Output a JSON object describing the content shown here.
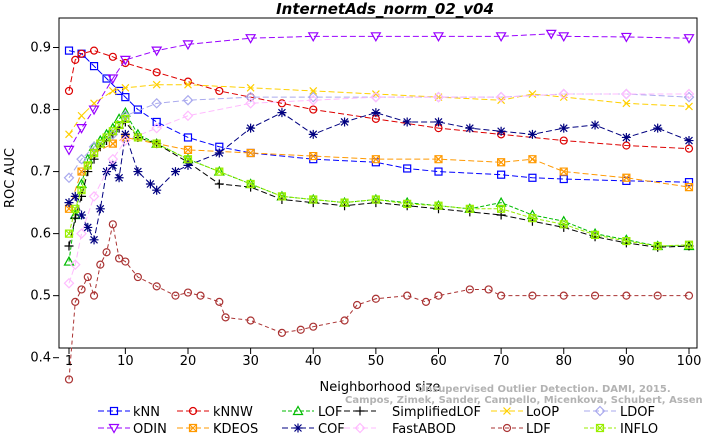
{
  "chart_data": {
    "type": "line",
    "title": "InternetAds_norm_02_v04",
    "xlabel": "Neighborhood size",
    "ylabel": "ROC AUC",
    "xlim": [
      1,
      100
    ],
    "ylim": [
      0.35,
      0.95
    ],
    "x_ticks": [
      "1",
      "10",
      "20",
      "30",
      "40",
      "50",
      "60",
      "70",
      "80",
      "90",
      "100"
    ],
    "y_ticks": [
      "0.4",
      "0.5",
      "0.6",
      "0.7",
      "0.8",
      "0.9"
    ],
    "grid": false,
    "legend_position": "bottom",
    "watermark": [
      "Unsupervised Outlier Detection. DAMI, 2015.",
      "Campos, Zimek, Sander, Campello, Micenkova, Schubert, Assent, Houle"
    ],
    "series": [
      {
        "name": "kNN",
        "color": "#0000ff",
        "dash": "6,3",
        "marker": "square",
        "x": [
          1,
          3,
          5,
          7,
          9,
          10,
          12,
          15,
          20,
          25,
          30,
          40,
          50,
          55,
          60,
          70,
          75,
          80,
          90,
          100
        ],
        "y": [
          0.895,
          0.89,
          0.87,
          0.85,
          0.83,
          0.82,
          0.8,
          0.78,
          0.755,
          0.74,
          0.73,
          0.72,
          0.715,
          0.705,
          0.7,
          0.695,
          0.69,
          0.688,
          0.685,
          0.683
        ]
      },
      {
        "name": "kNNW",
        "color": "#dd0000",
        "dash": "6,3",
        "marker": "circle",
        "x": [
          1,
          2,
          3,
          5,
          8,
          10,
          15,
          20,
          25,
          30,
          35,
          40,
          50,
          60,
          70,
          80,
          90,
          100
        ],
        "y": [
          0.83,
          0.88,
          0.89,
          0.895,
          0.885,
          0.875,
          0.86,
          0.845,
          0.83,
          0.82,
          0.81,
          0.8,
          0.785,
          0.77,
          0.76,
          0.75,
          0.742,
          0.737
        ]
      },
      {
        "name": "LOF",
        "color": "#00bb00",
        "dash": "4,2",
        "marker": "triangle",
        "x": [
          1,
          2,
          3,
          4,
          5,
          6,
          7,
          8,
          9,
          10,
          12,
          15,
          20,
          25,
          30,
          35,
          40,
          45,
          50,
          55,
          60,
          65,
          70,
          75,
          80,
          85,
          90,
          95,
          100
        ],
        "y": [
          0.555,
          0.63,
          0.68,
          0.72,
          0.74,
          0.75,
          0.76,
          0.77,
          0.785,
          0.795,
          0.76,
          0.745,
          0.72,
          0.7,
          0.68,
          0.66,
          0.655,
          0.65,
          0.655,
          0.65,
          0.645,
          0.64,
          0.65,
          0.63,
          0.62,
          0.6,
          0.59,
          0.58,
          0.58
        ]
      },
      {
        "name": "SimplifiedLOF",
        "color": "#000000",
        "dash": "6,3",
        "marker": "plus",
        "x": [
          1,
          2,
          3,
          4,
          5,
          6,
          7,
          8,
          9,
          10,
          12,
          15,
          20,
          25,
          30,
          35,
          40,
          45,
          50,
          55,
          60,
          65,
          70,
          75,
          80,
          85,
          90,
          95,
          100
        ],
        "y": [
          0.58,
          0.625,
          0.66,
          0.7,
          0.72,
          0.74,
          0.75,
          0.76,
          0.77,
          0.78,
          0.755,
          0.745,
          0.715,
          0.68,
          0.675,
          0.655,
          0.65,
          0.645,
          0.65,
          0.645,
          0.64,
          0.635,
          0.63,
          0.62,
          0.61,
          0.595,
          0.585,
          0.578,
          0.58
        ]
      },
      {
        "name": "LoOP",
        "color": "#ffd000",
        "dash": "6,3",
        "marker": "x",
        "x": [
          1,
          3,
          5,
          8,
          10,
          15,
          20,
          30,
          40,
          50,
          60,
          70,
          75,
          80,
          90,
          100
        ],
        "y": [
          0.76,
          0.79,
          0.81,
          0.83,
          0.835,
          0.84,
          0.84,
          0.835,
          0.83,
          0.825,
          0.82,
          0.815,
          0.825,
          0.82,
          0.81,
          0.805
        ]
      },
      {
        "name": "LDOF",
        "color": "#aaaaee",
        "dash": "6,3",
        "marker": "diamond",
        "x": [
          1,
          3,
          5,
          8,
          10,
          15,
          20,
          30,
          40,
          50,
          60,
          70,
          80,
          90,
          100
        ],
        "y": [
          0.69,
          0.72,
          0.74,
          0.76,
          0.79,
          0.81,
          0.815,
          0.82,
          0.82,
          0.82,
          0.82,
          0.82,
          0.825,
          0.825,
          0.82
        ]
      },
      {
        "name": "ODIN",
        "color": "#9900ff",
        "dash": "6,3",
        "marker": "triangle-down",
        "x": [
          1,
          3,
          5,
          8,
          10,
          15,
          20,
          30,
          40,
          50,
          60,
          70,
          78,
          80,
          90,
          100
        ],
        "y": [
          0.735,
          0.77,
          0.8,
          0.85,
          0.88,
          0.895,
          0.905,
          0.915,
          0.918,
          0.918,
          0.918,
          0.918,
          0.922,
          0.918,
          0.917,
          0.915
        ]
      },
      {
        "name": "KDEOS",
        "color": "#ff9900",
        "dash": "6,3",
        "marker": "square-x",
        "x": [
          1,
          3,
          5,
          8,
          10,
          15,
          20,
          30,
          40,
          50,
          60,
          70,
          75,
          80,
          90,
          100
        ],
        "y": [
          0.64,
          0.7,
          0.73,
          0.745,
          0.755,
          0.745,
          0.735,
          0.73,
          0.725,
          0.72,
          0.72,
          0.715,
          0.72,
          0.7,
          0.69,
          0.675
        ]
      },
      {
        "name": "COF",
        "color": "#000080",
        "dash": "6,3",
        "marker": "star",
        "x": [
          1,
          2,
          3,
          4,
          5,
          6,
          7,
          8,
          9,
          10,
          12,
          14,
          15,
          18,
          20,
          25,
          30,
          35,
          40,
          45,
          50,
          55,
          60,
          65,
          70,
          75,
          80,
          85,
          90,
          95,
          100
        ],
        "y": [
          0.65,
          0.66,
          0.63,
          0.61,
          0.59,
          0.64,
          0.7,
          0.71,
          0.69,
          0.76,
          0.7,
          0.68,
          0.67,
          0.7,
          0.71,
          0.73,
          0.77,
          0.795,
          0.76,
          0.78,
          0.795,
          0.78,
          0.78,
          0.77,
          0.765,
          0.76,
          0.77,
          0.775,
          0.755,
          0.77,
          0.75
        ]
      },
      {
        "name": "FastABOD",
        "color": "#ffbbff",
        "dash": "6,3",
        "marker": "diamond",
        "x": [
          1,
          2,
          3,
          5,
          8,
          10,
          15,
          20,
          30,
          40,
          50,
          60,
          70,
          80,
          90,
          100
        ],
        "y": [
          0.52,
          0.55,
          0.6,
          0.66,
          0.72,
          0.75,
          0.77,
          0.79,
          0.81,
          0.815,
          0.82,
          0.82,
          0.82,
          0.825,
          0.825,
          0.825
        ]
      },
      {
        "name": "LDF",
        "color": "#aa3333",
        "dash": "4,3",
        "marker": "circle",
        "x": [
          1,
          2,
          3,
          4,
          5,
          6,
          7,
          8,
          9,
          10,
          12,
          15,
          18,
          20,
          22,
          25,
          26,
          30,
          35,
          38,
          40,
          45,
          47,
          50,
          55,
          58,
          60,
          65,
          68,
          70,
          75,
          80,
          85,
          90,
          95,
          100
        ],
        "y": [
          0.365,
          0.49,
          0.51,
          0.53,
          0.5,
          0.55,
          0.57,
          0.615,
          0.56,
          0.555,
          0.53,
          0.515,
          0.5,
          0.505,
          0.5,
          0.49,
          0.465,
          0.46,
          0.44,
          0.445,
          0.45,
          0.46,
          0.485,
          0.495,
          0.5,
          0.49,
          0.5,
          0.51,
          0.51,
          0.5,
          0.5,
          0.5,
          0.5,
          0.5,
          0.5,
          0.5
        ]
      },
      {
        "name": "INFLO",
        "color": "#99ee00",
        "dash": "4,2",
        "marker": "square-x",
        "x": [
          1,
          2,
          3,
          4,
          5,
          6,
          7,
          8,
          9,
          10,
          12,
          15,
          20,
          25,
          30,
          35,
          40,
          45,
          50,
          55,
          60,
          65,
          70,
          75,
          80,
          85,
          90,
          95,
          100
        ],
        "y": [
          0.6,
          0.64,
          0.67,
          0.71,
          0.73,
          0.745,
          0.755,
          0.765,
          0.775,
          0.785,
          0.755,
          0.745,
          0.72,
          0.7,
          0.68,
          0.66,
          0.655,
          0.65,
          0.655,
          0.648,
          0.645,
          0.64,
          0.64,
          0.625,
          0.615,
          0.598,
          0.588,
          0.58,
          0.582
        ]
      }
    ]
  }
}
